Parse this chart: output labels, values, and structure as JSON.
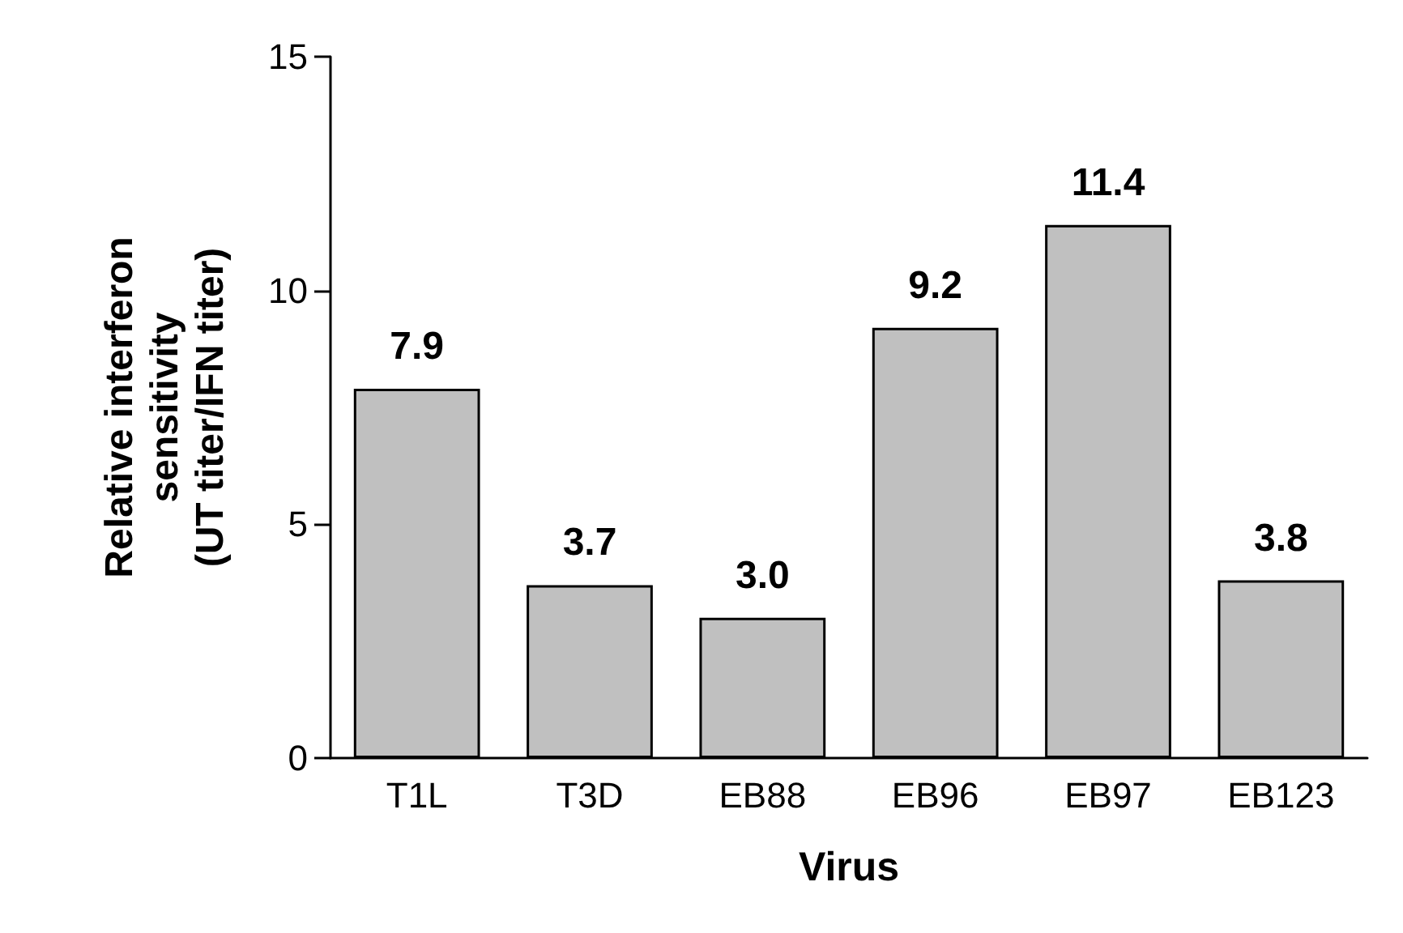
{
  "chart_data": {
    "type": "bar",
    "xlabel": "Virus",
    "ylabel": "Relative interferon\nsensitivity\n(UT titer/IFN titer)",
    "categories": [
      "T1L",
      "T3D",
      "EB88",
      "EB96",
      "EB97",
      "EB123"
    ],
    "values": [
      7.9,
      3.7,
      3.0,
      9.2,
      11.4,
      3.8
    ],
    "value_labels": [
      "7.9",
      "3.7",
      "3.0",
      "9.2",
      "11.4",
      "3.8"
    ],
    "color": "#c0c0c0",
    "ylim": [
      0,
      15
    ],
    "yticks": [
      0,
      5,
      10,
      15
    ],
    "grid": false
  }
}
